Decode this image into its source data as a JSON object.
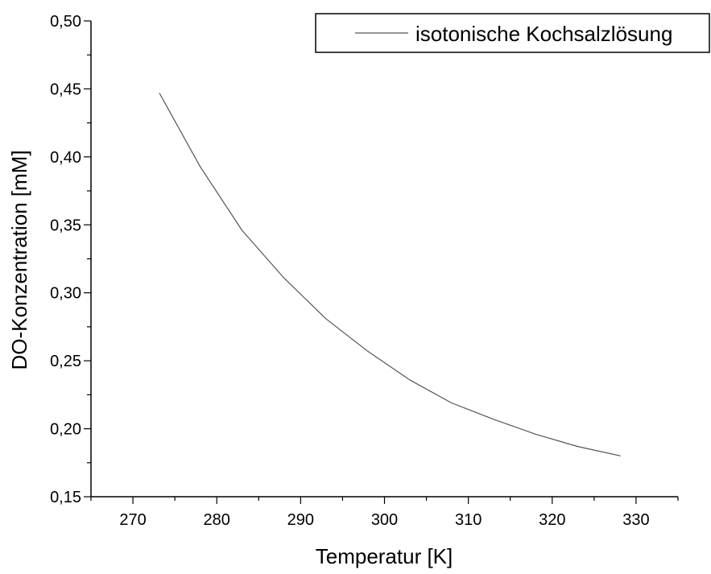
{
  "chart_data": {
    "type": "line",
    "title": "",
    "xlabel": "Temperatur [K]",
    "ylabel": "DO-Konzentration [mM]",
    "xlim": [
      265,
      335
    ],
    "ylim": [
      0.15,
      0.5
    ],
    "x_ticks": [
      270,
      280,
      290,
      300,
      310,
      320,
      330
    ],
    "x_tick_labels": [
      "270",
      "280",
      "290",
      "300",
      "310",
      "320",
      "330"
    ],
    "y_ticks": [
      0.15,
      0.2,
      0.25,
      0.3,
      0.35,
      0.4,
      0.45,
      0.5
    ],
    "y_tick_labels": [
      "0,15",
      "0,20",
      "0,25",
      "0,30",
      "0,35",
      "0,40",
      "0,45",
      "0,50"
    ],
    "grid": false,
    "legend_position": "top-right",
    "series": [
      {
        "name": "isotonische Kochsalzlösung",
        "color": "#555555",
        "x": [
          273.15,
          278,
          283,
          288,
          293,
          298,
          303,
          308,
          313,
          318,
          323,
          328.15
        ],
        "y": [
          0.447,
          0.393,
          0.346,
          0.311,
          0.281,
          0.257,
          0.236,
          0.219,
          0.207,
          0.196,
          0.187,
          0.18
        ]
      }
    ]
  }
}
